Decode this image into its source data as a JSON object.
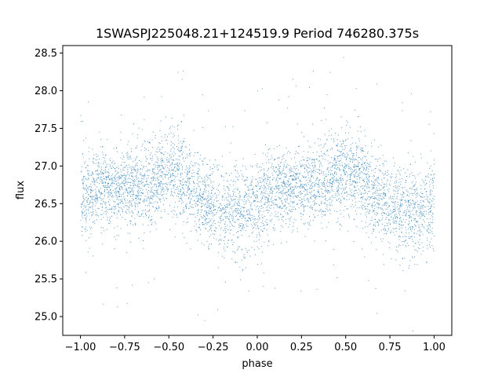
{
  "chart_data": {
    "type": "scatter",
    "title": "1SWASPJ225048.21+124519.9 Period 746280.375s",
    "xlabel": "phase",
    "ylabel": "flux",
    "xlim": [
      -1.1,
      1.1
    ],
    "ylim": [
      24.75,
      28.6
    ],
    "xticks": [
      -1.0,
      -0.75,
      -0.5,
      -0.25,
      0.0,
      0.25,
      0.5,
      0.75,
      1.0
    ],
    "xtick_labels": [
      "−1.00",
      "−0.75",
      "−0.50",
      "−0.25",
      "0.00",
      "0.25",
      "0.50",
      "0.75",
      "1.00"
    ],
    "yticks": [
      25.0,
      25.5,
      26.0,
      26.5,
      27.0,
      27.5,
      28.0,
      28.5
    ],
    "ytick_labels": [
      "25.0",
      "25.5",
      "26.0",
      "26.5",
      "27.0",
      "27.5",
      "28.0",
      "28.5"
    ],
    "grid": false,
    "point_color": "#1f77b4",
    "series": [
      {
        "phase_range": [
          -1.0,
          1.0
        ],
        "profile": {
          "phase": [
            0.0,
            0.1,
            0.2,
            0.3,
            0.4,
            0.5,
            0.6,
            0.7,
            0.8,
            0.9,
            1.0
          ],
          "flux_center": [
            26.5,
            26.75,
            26.7,
            26.75,
            26.8,
            26.95,
            26.75,
            26.55,
            26.4,
            26.4,
            26.5
          ],
          "flux_spread": [
            0.28,
            0.25,
            0.25,
            0.25,
            0.28,
            0.3,
            0.28,
            0.27,
            0.3,
            0.3,
            0.28
          ]
        }
      }
    ]
  }
}
